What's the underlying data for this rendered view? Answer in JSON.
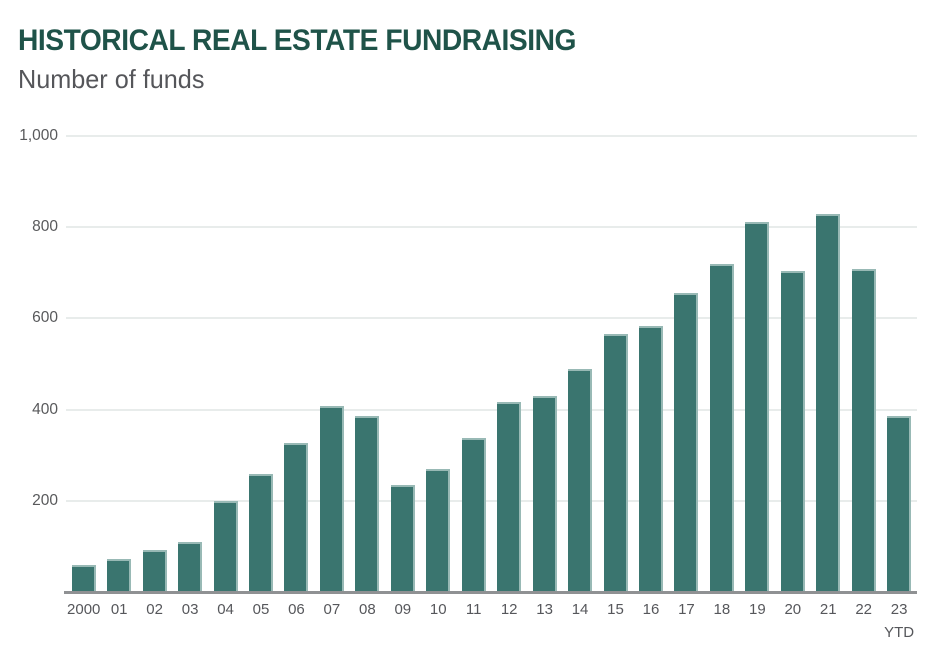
{
  "header": {
    "title": "HISTORICAL REAL ESTATE FUNDRAISING",
    "subtitle": "Number of funds"
  },
  "chart_data": {
    "type": "bar",
    "title": "HISTORICAL REAL ESTATE FUNDRAISING",
    "subtitle": "Number of funds",
    "xlabel": "",
    "ylabel": "Number of funds",
    "ylim": [
      0,
      1000
    ],
    "yticks": [
      200,
      400,
      600,
      800,
      1000
    ],
    "ytick_labels": [
      "200",
      "400",
      "600",
      "800",
      "1,000"
    ],
    "grid": true,
    "legend": false,
    "x_labels": [
      {
        "label": "2000",
        "sublabel": ""
      },
      {
        "label": "01",
        "sublabel": ""
      },
      {
        "label": "02",
        "sublabel": ""
      },
      {
        "label": "03",
        "sublabel": ""
      },
      {
        "label": "04",
        "sublabel": ""
      },
      {
        "label": "05",
        "sublabel": ""
      },
      {
        "label": "06",
        "sublabel": ""
      },
      {
        "label": "07",
        "sublabel": ""
      },
      {
        "label": "08",
        "sublabel": ""
      },
      {
        "label": "09",
        "sublabel": ""
      },
      {
        "label": "10",
        "sublabel": ""
      },
      {
        "label": "11",
        "sublabel": ""
      },
      {
        "label": "12",
        "sublabel": ""
      },
      {
        "label": "13",
        "sublabel": ""
      },
      {
        "label": "14",
        "sublabel": ""
      },
      {
        "label": "15",
        "sublabel": ""
      },
      {
        "label": "16",
        "sublabel": ""
      },
      {
        "label": "17",
        "sublabel": ""
      },
      {
        "label": "18",
        "sublabel": ""
      },
      {
        "label": "19",
        "sublabel": ""
      },
      {
        "label": "20",
        "sublabel": ""
      },
      {
        "label": "21",
        "sublabel": ""
      },
      {
        "label": "22",
        "sublabel": ""
      },
      {
        "label": "23",
        "sublabel": "YTD"
      }
    ],
    "categories": [
      "2000",
      "01",
      "02",
      "03",
      "04",
      "05",
      "06",
      "07",
      "08",
      "09",
      "10",
      "11",
      "12",
      "13",
      "14",
      "15",
      "16",
      "17",
      "18",
      "19",
      "20",
      "21",
      "22",
      "23 YTD"
    ],
    "values": [
      60,
      72,
      92,
      110,
      200,
      258,
      326,
      408,
      385,
      234,
      269,
      338,
      416,
      430,
      490,
      565,
      583,
      655,
      720,
      811,
      703,
      830,
      709,
      385
    ]
  },
  "colors": {
    "bar": "#3A756F",
    "bar_edge": "#9DBEBA",
    "title": "#1F5349",
    "subtitle": "#55565A",
    "axis_text": "#58595B",
    "gridline": "#E8ECEB",
    "baseline": "#8F9193",
    "background": "#FFFFFF"
  }
}
